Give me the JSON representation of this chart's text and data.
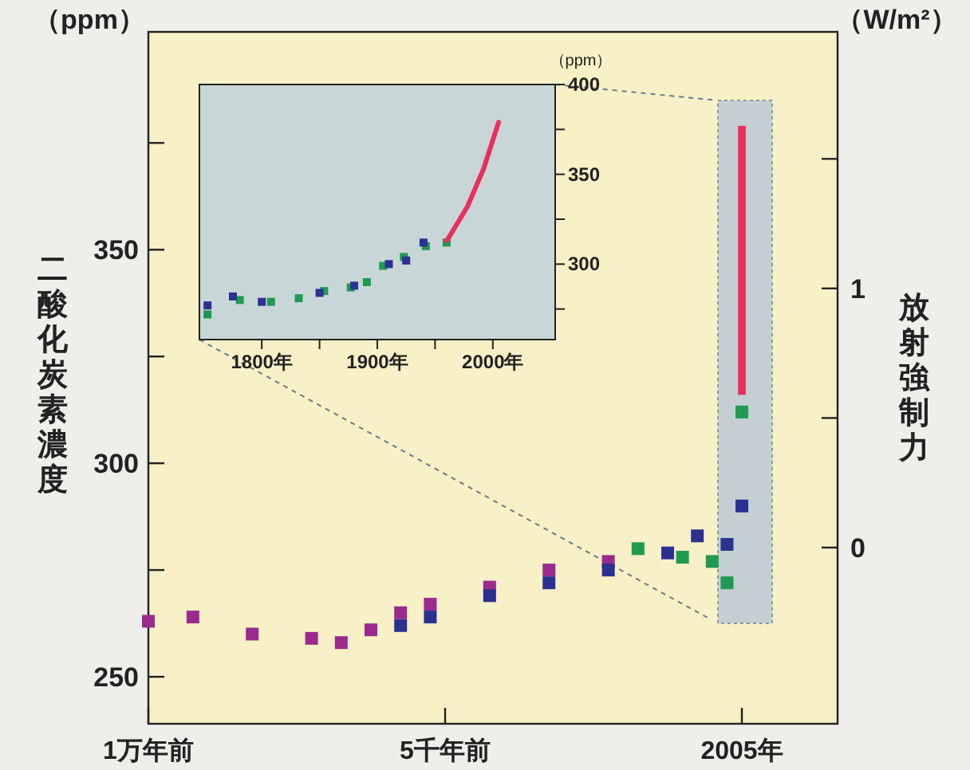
{
  "chart_data": [
    {
      "type": "scatter",
      "ylabel": "二酸化炭素濃度",
      "y2label": "放射強制力",
      "annotations": [
        "（ppm）",
        "（W/m²）"
      ],
      "marker": "square",
      "categories": [
        "1万年前",
        null,
        null,
        null,
        null,
        null,
        null,
        null,
        null,
        null,
        null,
        null,
        null,
        null,
        null,
        null,
        null,
        null,
        null,
        null,
        "5千年前",
        null,
        null,
        null,
        null,
        null,
        null,
        null,
        null,
        null,
        null,
        null,
        null,
        null,
        null,
        null,
        null,
        null,
        null,
        null,
        "2005年",
        null,
        null,
        null,
        null,
        null,
        null
      ],
      "ylim": [
        239,
        401
      ],
      "yticks": [
        250,
        {
          "value": 275,
          "label": null
        },
        300,
        {
          "value": 325,
          "label": null
        },
        350,
        {
          "value": 375,
          "label": null
        }
      ],
      "y2lim": [
        -0.68,
        1.99
      ],
      "y2ticks": [
        0,
        {
          "value": 0.5,
          "label": null
        },
        1,
        {
          "value": 1.5,
          "label": null
        }
      ],
      "series": [
        {
          "color": "#9b2a8e",
          "values": [
            263,
            null,
            null,
            264,
            null,
            null,
            null,
            260,
            null,
            null,
            null,
            259,
            null,
            258,
            null,
            261,
            null,
            265,
            null,
            267,
            null,
            null,
            null,
            271,
            null,
            null,
            null,
            275,
            null,
            null,
            null,
            277,
            null,
            null,
            null,
            null,
            null,
            null,
            null,
            null,
            null,
            null,
            null,
            null,
            null,
            null,
            null
          ]
        },
        {
          "color": "#2b3190",
          "values": [
            null,
            null,
            null,
            null,
            null,
            null,
            null,
            null,
            null,
            null,
            null,
            null,
            null,
            null,
            null,
            null,
            null,
            262,
            null,
            264,
            null,
            null,
            null,
            269,
            null,
            null,
            null,
            272,
            null,
            null,
            null,
            275,
            null,
            null,
            null,
            279,
            null,
            283,
            null,
            281,
            290,
            null,
            null,
            null,
            null,
            null,
            null
          ]
        },
        {
          "color": "#1f9a50",
          "values": [
            null,
            null,
            null,
            null,
            null,
            null,
            null,
            null,
            null,
            null,
            null,
            null,
            null,
            null,
            null,
            null,
            null,
            null,
            null,
            null,
            null,
            null,
            null,
            null,
            null,
            null,
            null,
            null,
            null,
            null,
            null,
            null,
            null,
            280,
            null,
            null,
            278,
            null,
            277,
            272,
            312,
            null,
            null,
            null,
            null,
            null,
            null
          ]
        },
        {
          "type": "bar",
          "color": "#e8305a",
          "values": [
            null,
            null,
            null,
            null,
            null,
            null,
            null,
            null,
            null,
            null,
            null,
            null,
            null,
            null,
            null,
            null,
            null,
            null,
            null,
            null,
            null,
            null,
            null,
            null,
            null,
            null,
            null,
            null,
            null,
            null,
            null,
            null,
            null,
            null,
            null,
            null,
            null,
            null,
            null,
            null,
            63,
            null,
            null,
            null,
            null,
            null,
            null
          ],
          "base": [
            null,
            null,
            null,
            null,
            null,
            null,
            null,
            null,
            null,
            null,
            null,
            null,
            null,
            null,
            null,
            null,
            null,
            null,
            null,
            null,
            null,
            null,
            null,
            null,
            null,
            null,
            null,
            null,
            null,
            null,
            null,
            null,
            null,
            null,
            null,
            null,
            null,
            null,
            null,
            null,
            316,
            null,
            null,
            null,
            null,
            null,
            null
          ]
        }
      ]
    },
    {
      "type": "scatter",
      "ylabel": "（ppm）",
      "marker": "square",
      "xlim": [
        1746,
        2054
      ],
      "xticks": [
        {
          "value": 1800,
          "label": "1800年"
        },
        {
          "value": 1850,
          "label": null
        },
        {
          "value": 1900,
          "label": "1900年"
        },
        {
          "value": 1950,
          "label": null
        },
        {
          "value": 2000,
          "label": "2000年"
        }
      ],
      "ylim": [
        258,
        400
      ],
      "yticks": [
        {
          "value": 275,
          "label": null
        },
        300,
        {
          "value": 325,
          "label": null
        },
        350,
        {
          "value": 375,
          "label": null
        },
        400
      ],
      "series": [
        {
          "color": "#1f9a50",
          "x": [
            1753,
            1781,
            1808,
            1832,
            1854,
            1877,
            1891,
            1905,
            1923,
            1942,
            1960
          ],
          "values": [
            272,
            280,
            279,
            281,
            285,
            287,
            290,
            299,
            304,
            310,
            312
          ]
        },
        {
          "color": "#2b3190",
          "x": [
            1753,
            1775,
            1800,
            1850,
            1880,
            1910,
            1925,
            1940
          ],
          "values": [
            277,
            282,
            279,
            284,
            288,
            300,
            302,
            312
          ]
        },
        {
          "type": "line",
          "marker": "none",
          "color": "#e8305a",
          "x": [
            1960,
            1964,
            1978,
            1992,
            2005
          ],
          "values": [
            313,
            317,
            332,
            353,
            379
          ]
        }
      ]
    }
  ]
}
